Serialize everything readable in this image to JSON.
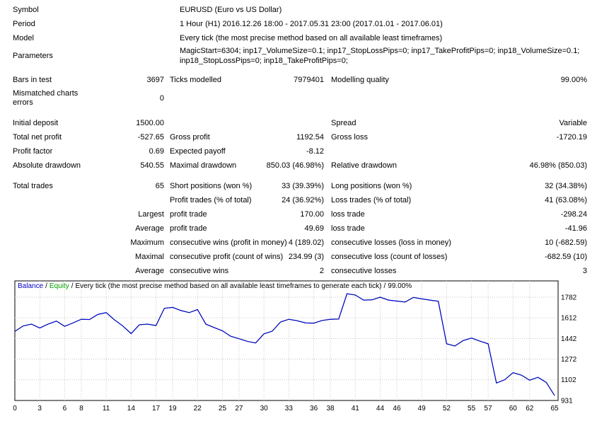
{
  "report": {
    "symbol": {
      "label": "Symbol",
      "value": "EURUSD (Euro vs US Dollar)"
    },
    "period": {
      "label": "Period",
      "value": "1 Hour (H1) 2016.12.26 18:00 - 2017.05.31 23:00 (2017.01.01 - 2017.06.01)"
    },
    "model": {
      "label": "Model",
      "value": "Every tick (the most precise method based on all available least timeframes)"
    },
    "parameters": {
      "label": "Parameters",
      "value": "MagicStart=6304; inp17_VolumeSize=0.1; inp17_StopLossPips=0; inp17_TakeProfitPips=0; inp18_VolumeSize=0.1; inp18_StopLossPips=0; inp18_TakeProfitPips=0;"
    },
    "bars": {
      "label": "Bars in test",
      "value": "3697"
    },
    "ticks": {
      "label": "Ticks modelled",
      "value": "7979401"
    },
    "quality": {
      "label": "Modelling quality",
      "value": "99.00%"
    },
    "mismatched": {
      "label": "Mismatched charts errors",
      "value": "0"
    },
    "initial_deposit": {
      "label": "Initial deposit",
      "value": "1500.00"
    },
    "spread": {
      "label": "Spread",
      "value": "Variable"
    },
    "total_net_profit": {
      "label": "Total net profit",
      "value": "-527.65"
    },
    "gross_profit": {
      "label": "Gross profit",
      "value": "1192.54"
    },
    "gross_loss": {
      "label": "Gross loss",
      "value": "-1720.19"
    },
    "profit_factor": {
      "label": "Profit factor",
      "value": "0.69"
    },
    "expected_payoff": {
      "label": "Expected payoff",
      "value": "-8.12"
    },
    "absolute_drawdown": {
      "label": "Absolute drawdown",
      "value": "540.55"
    },
    "maximal_drawdown": {
      "label": "Maximal drawdown",
      "value": "850.03 (46.98%)"
    },
    "relative_drawdown": {
      "label": "Relative drawdown",
      "value": "46.98% (850.03)"
    },
    "total_trades": {
      "label": "Total trades",
      "value": "65"
    },
    "short_positions": {
      "label": "Short positions (won %)",
      "value": "33 (39.39%)"
    },
    "long_positions": {
      "label": "Long positions (won %)",
      "value": "32 (34.38%)"
    },
    "profit_trades": {
      "label": "Profit trades (% of total)",
      "value": "24 (36.92%)"
    },
    "loss_trades": {
      "label": "Loss trades (% of total)",
      "value": "41 (63.08%)"
    },
    "largest": {
      "label": "Largest",
      "profit_label": "profit trade",
      "profit": "170.00",
      "loss_label": "loss trade",
      "loss": "-298.24"
    },
    "average_trade": {
      "label": "Average",
      "profit_label": "profit trade",
      "profit": "49.69",
      "loss_label": "loss trade",
      "loss": "-41.96"
    },
    "maximum": {
      "label": "Maximum",
      "wins_label": "consecutive wins (profit in money)",
      "wins": "4 (189.02)",
      "losses_label": "consecutive losses (loss in money)",
      "losses": "10 (-682.59)"
    },
    "maximal": {
      "label": "Maximal",
      "profit_label": "consecutive profit (count of wins)",
      "profit": "234.99 (3)",
      "loss_label": "consecutive loss (count of losses)",
      "loss": "-682.59 (10)"
    },
    "average_consec": {
      "label": "Average",
      "wins_label": "consecutive wins",
      "wins": "2",
      "losses_label": "consecutive losses",
      "losses": "3"
    }
  },
  "chart_data": {
    "type": "line",
    "title": "Balance / Equity / Every tick (the most precise method based on all available least timeframes to generate each tick) / 99.00%",
    "legend_balance": "Balance",
    "legend_equity": "Equity",
    "sep": "/",
    "model_text": "Every tick (the most precise method based on all available least timeframes to generate each tick)",
    "quality_text": "99.00%",
    "legend_position": "top-left-inside",
    "grid": true,
    "grid_color": "#c6c6c6",
    "balance_color": "#0000C8",
    "equity_color": "#00A000",
    "xlim": [
      0,
      65
    ],
    "ylim": [
      931,
      1916
    ],
    "x_ticks": [
      0,
      3,
      6,
      8,
      11,
      14,
      17,
      19,
      22,
      25,
      27,
      30,
      33,
      36,
      38,
      41,
      44,
      46,
      49,
      52,
      55,
      57,
      60,
      62,
      65
    ],
    "y_ticks": [
      1782,
      1612,
      1442,
      1272,
      1102,
      931
    ],
    "series": [
      {
        "name": "Balance",
        "color": "#0000C8",
        "values": [
          1500,
          1545,
          1560,
          1528,
          1560,
          1585,
          1542,
          1570,
          1600,
          1598,
          1640,
          1655,
          1595,
          1545,
          1482,
          1555,
          1560,
          1548,
          1690,
          1698,
          1672,
          1655,
          1680,
          1560,
          1532,
          1505,
          1460,
          1440,
          1418,
          1405,
          1480,
          1502,
          1578,
          1600,
          1588,
          1570,
          1568,
          1590,
          1600,
          1602,
          1810,
          1800,
          1758,
          1760,
          1782,
          1758,
          1750,
          1742,
          1780,
          1768,
          1758,
          1748,
          1398,
          1380,
          1425,
          1445,
          1420,
          1398,
          1075,
          1102,
          1160,
          1140,
          1098,
          1122,
          1080,
          972
        ]
      },
      {
        "name": "Equity",
        "color": "#00A000",
        "values": [
          1500,
          1545,
          1560,
          1528,
          1560,
          1585,
          1542,
          1570,
          1600,
          1598,
          1640,
          1655,
          1595,
          1545,
          1482,
          1555,
          1560,
          1548,
          1690,
          1698,
          1672,
          1655,
          1680,
          1560,
          1532,
          1505,
          1460,
          1440,
          1418,
          1405,
          1480,
          1502,
          1578,
          1600,
          1588,
          1570,
          1568,
          1590,
          1600,
          1602,
          1810,
          1800,
          1758,
          1760,
          1782,
          1758,
          1750,
          1742,
          1780,
          1768,
          1758,
          1748,
          1398,
          1380,
          1425,
          1445,
          1420,
          1398,
          1075,
          1102,
          1160,
          1140,
          1098,
          1122,
          1080,
          972
        ]
      }
    ]
  }
}
